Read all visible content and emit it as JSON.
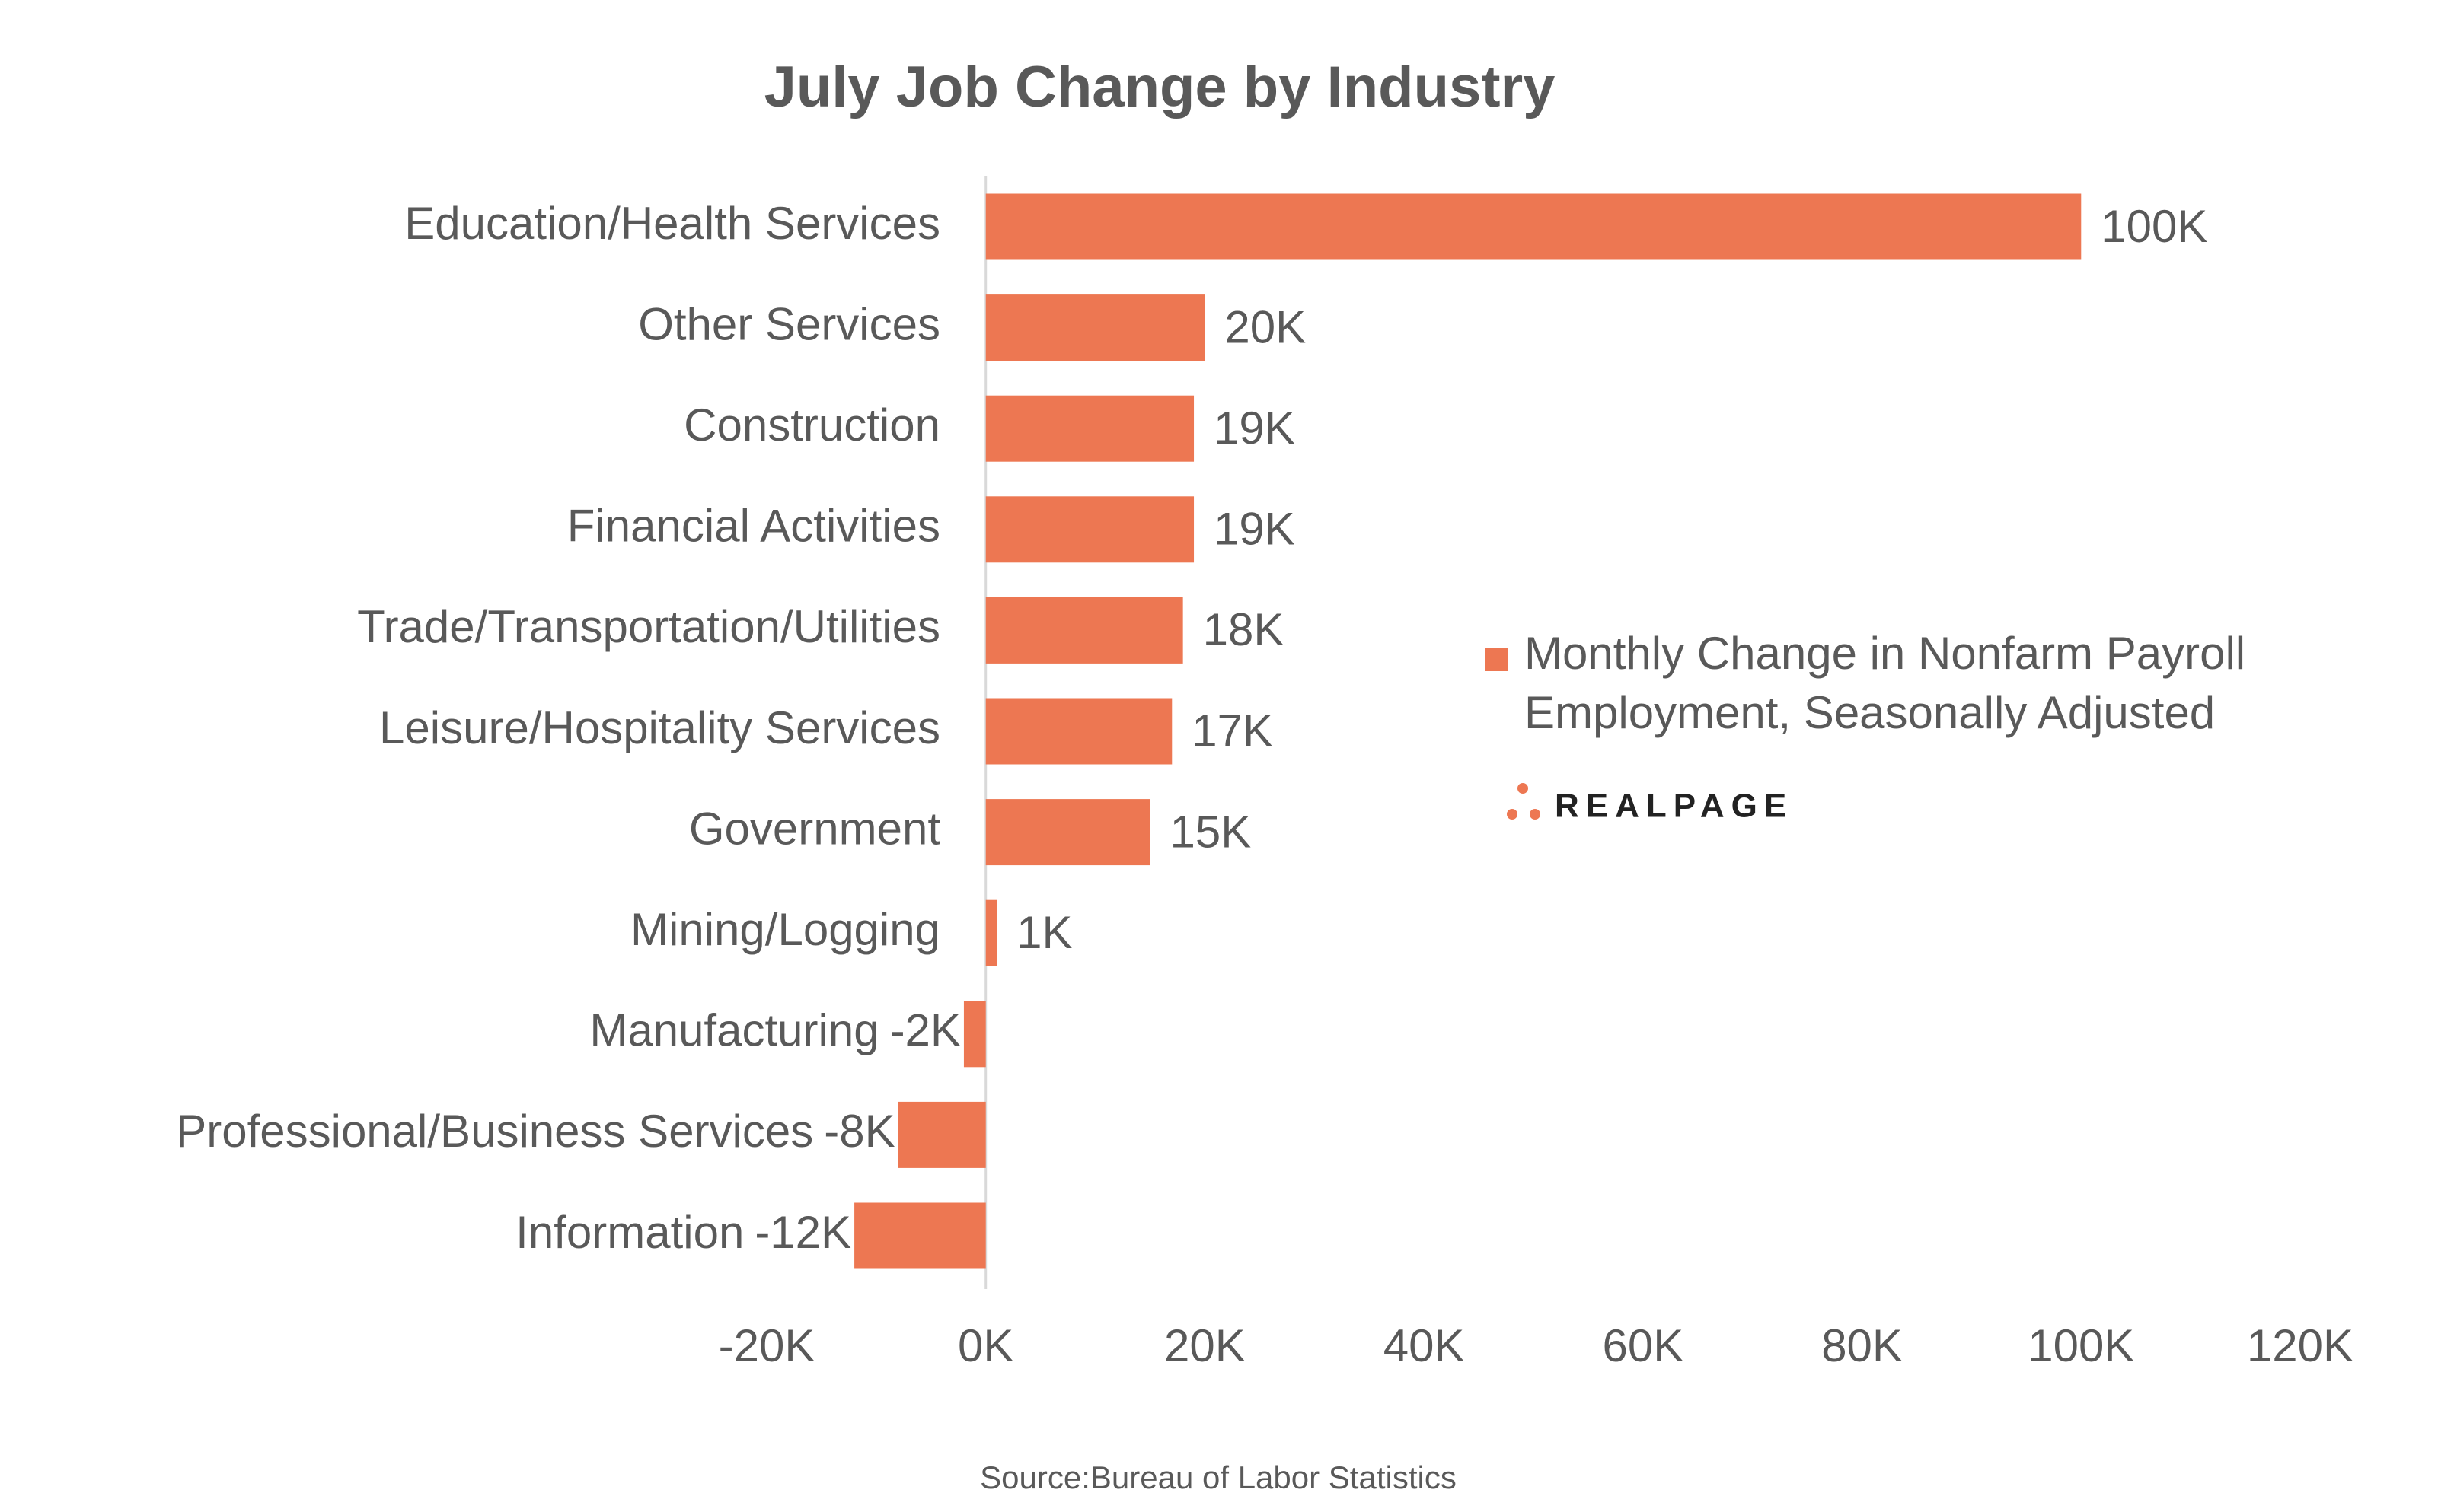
{
  "chart_data": {
    "type": "hbar",
    "title": "July Job Change by Industry",
    "categories": [
      "Education/Health Services",
      "Other Services",
      "Construction",
      "Financial Activities",
      "Trade/Transportation/Utilities",
      "Leisure/Hospitality Services",
      "Government",
      "Mining/Logging",
      "Manufacturing",
      "Professional/Business Services",
      "Information"
    ],
    "series": [
      {
        "name": "Monthly Change in Nonfarm Payroll Employment, Seasonally Adjusted",
        "color": "#ed7752",
        "values": [
          100000,
          20000,
          19000,
          19000,
          18000,
          17000,
          15000,
          1000,
          -2000,
          -8000,
          -12000
        ],
        "value_labels": [
          "100K",
          "20K",
          "19K",
          "19K",
          "18K",
          "17K",
          "15K",
          "1K",
          "-2K",
          "-8K",
          "-12K"
        ]
      }
    ],
    "xlim": [
      -20000,
      120000
    ],
    "xticks": [
      {
        "value": -20000,
        "label": "-20K"
      },
      {
        "value": 0,
        "label": "0K"
      },
      {
        "value": 20000,
        "label": "20K"
      },
      {
        "value": 40000,
        "label": "40K"
      },
      {
        "value": 60000,
        "label": "60K"
      },
      {
        "value": 80000,
        "label": "80K"
      },
      {
        "value": 100000,
        "label": "100K"
      },
      {
        "value": 120000,
        "label": "120K"
      }
    ],
    "grid": false,
    "source": "Source:Bureau of Labor Statistics",
    "logo": "REALPAGE"
  }
}
